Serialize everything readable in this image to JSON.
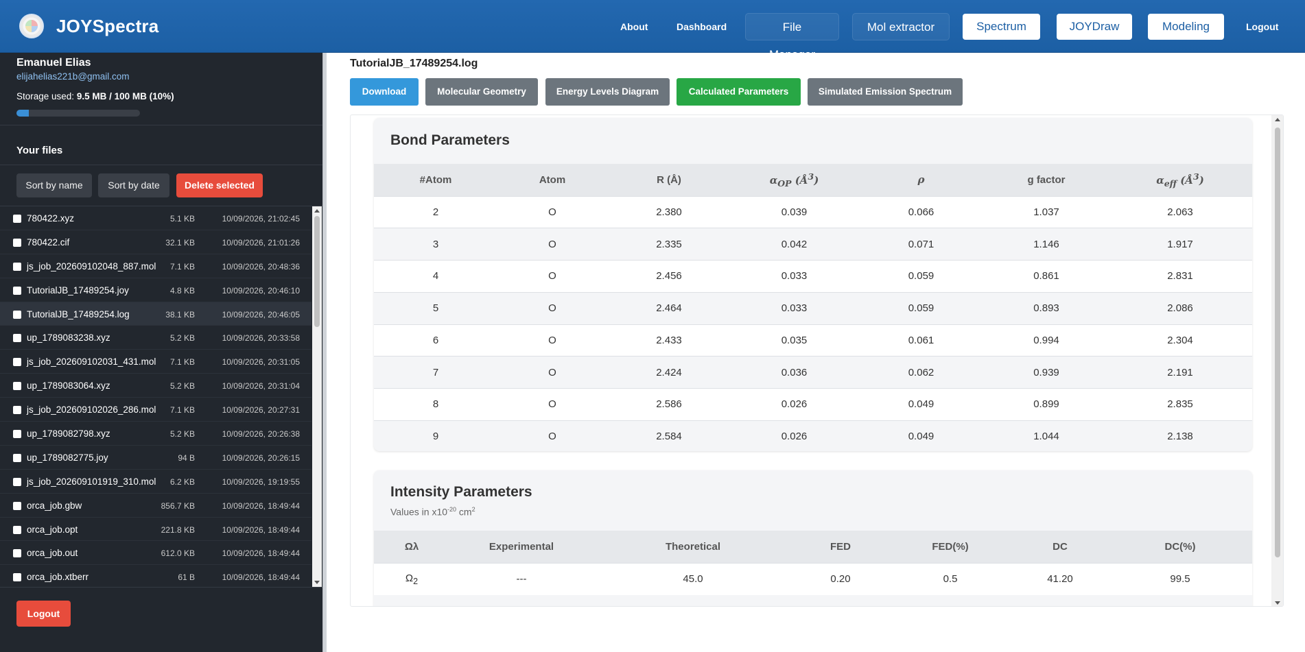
{
  "app": {
    "name": "JOYSpectra"
  },
  "nav": {
    "about": "About",
    "dashboard": "Dashboard",
    "file_manager": "File Manager",
    "mol_extractor": "Mol extractor",
    "spectrum": "Spectrum",
    "joydraw": "JOYDraw",
    "modeling": "Modeling",
    "logout": "Logout"
  },
  "sidebar": {
    "user_name": "Emanuel Elias",
    "user_email": "elijahelias221b@gmail.com",
    "storage_label": "Storage used:",
    "storage_value": "9.5 MB / 100 MB (10%)",
    "storage_fraction": 0.1,
    "files_heading": "Your files",
    "sort_name": "Sort by name",
    "sort_date": "Sort by date",
    "delete_selected": "Delete selected",
    "logout": "Logout",
    "files": [
      {
        "name": "780422.xyz",
        "size": "5.1 KB",
        "date": "10/09/2026, 21:02:45"
      },
      {
        "name": "780422.cif",
        "size": "32.1 KB",
        "date": "10/09/2026, 21:01:26"
      },
      {
        "name": "js_job_202609102048_887.mol",
        "size": "7.1 KB",
        "date": "10/09/2026, 20:48:36"
      },
      {
        "name": "TutorialJB_17489254.joy",
        "size": "4.8 KB",
        "date": "10/09/2026, 20:46:10"
      },
      {
        "name": "TutorialJB_17489254.log",
        "size": "38.1 KB",
        "date": "10/09/2026, 20:46:05",
        "selected": true
      },
      {
        "name": "up_1789083238.xyz",
        "size": "5.2 KB",
        "date": "10/09/2026, 20:33:58"
      },
      {
        "name": "js_job_202609102031_431.mol",
        "size": "7.1 KB",
        "date": "10/09/2026, 20:31:05"
      },
      {
        "name": "up_1789083064.xyz",
        "size": "5.2 KB",
        "date": "10/09/2026, 20:31:04"
      },
      {
        "name": "js_job_202609102026_286.mol",
        "size": "7.1 KB",
        "date": "10/09/2026, 20:27:31"
      },
      {
        "name": "up_1789082798.xyz",
        "size": "5.2 KB",
        "date": "10/09/2026, 20:26:38"
      },
      {
        "name": "up_1789082775.joy",
        "size": "94 B",
        "date": "10/09/2026, 20:26:15"
      },
      {
        "name": "js_job_202609101919_310.mol",
        "size": "6.2 KB",
        "date": "10/09/2026, 19:19:55"
      },
      {
        "name": "orca_job.gbw",
        "size": "856.7 KB",
        "date": "10/09/2026, 18:49:44"
      },
      {
        "name": "orca_job.opt",
        "size": "221.8 KB",
        "date": "10/09/2026, 18:49:44"
      },
      {
        "name": "orca_job.out",
        "size": "612.0 KB",
        "date": "10/09/2026, 18:49:44"
      },
      {
        "name": "orca_job.xtberr",
        "size": "61 B",
        "date": "10/09/2026, 18:49:44"
      }
    ]
  },
  "main": {
    "file_title": "TutorialJB_17489254.log",
    "actions": {
      "download": "Download",
      "geometry": "Molecular Geometry",
      "energy": "Energy Levels Diagram",
      "calculated": "Calculated Parameters",
      "simulated": "Simulated Emission Spectrum"
    },
    "bond": {
      "title": "Bond Parameters",
      "headers": {
        "atom_no": "#Atom",
        "atom": "Atom",
        "r": "R (Å)",
        "alpha_op_sym": "α",
        "alpha_op_sub": "OP",
        "alpha_op_unit": " (Å",
        "rho": "ρ",
        "g": "g factor",
        "alpha_eff_sym": "α",
        "alpha_eff_sub": "eff",
        "alpha_eff_unit": " (Å"
      },
      "rows": [
        [
          "2",
          "O",
          "2.380",
          "0.039",
          "0.066",
          "1.037",
          "2.063"
        ],
        [
          "3",
          "O",
          "2.335",
          "0.042",
          "0.071",
          "1.146",
          "1.917"
        ],
        [
          "4",
          "O",
          "2.456",
          "0.033",
          "0.059",
          "0.861",
          "2.831"
        ],
        [
          "5",
          "O",
          "2.464",
          "0.033",
          "0.059",
          "0.893",
          "2.086"
        ],
        [
          "6",
          "O",
          "2.433",
          "0.035",
          "0.061",
          "0.994",
          "2.304"
        ],
        [
          "7",
          "O",
          "2.424",
          "0.036",
          "0.062",
          "0.939",
          "2.191"
        ],
        [
          "8",
          "O",
          "2.586",
          "0.026",
          "0.049",
          "0.899",
          "2.835"
        ],
        [
          "9",
          "O",
          "2.584",
          "0.026",
          "0.049",
          "1.044",
          "2.138"
        ]
      ]
    },
    "intensity": {
      "title": "Intensity Parameters",
      "sub_prefix": "Values in x10",
      "sub_exp": "-20",
      "sub_unit": " cm",
      "sub_unit_exp": "2",
      "headers": {
        "omega": "Ωλ",
        "experimental": "Experimental",
        "theoretical": "Theoretical",
        "fed": "FED",
        "fed_pct": "FED(%)",
        "dc": "DC",
        "dc_pct": "DC(%)"
      },
      "rows": [
        {
          "omega": "Ω",
          "omega_sub": "2",
          "experimental": "---",
          "theoretical": "45.0",
          "fed": "0.20",
          "fed_pct": "0.5",
          "dc": "41.20",
          "dc_pct": "99.5"
        }
      ]
    }
  },
  "colors": {
    "header": "#1c5fa4",
    "sidebar": "#22272e",
    "download": "#3498db",
    "secondary": "#6c757d",
    "active": "#28a745",
    "danger": "#e74c3c"
  }
}
